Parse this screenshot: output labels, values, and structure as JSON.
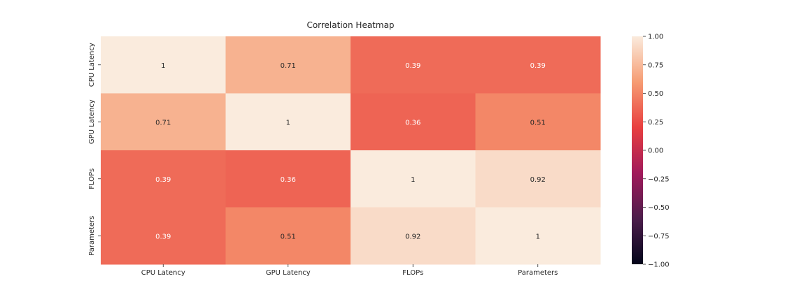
{
  "chart_data": {
    "type": "heatmap",
    "title": "Correlation Heatmap",
    "x_categories": [
      "CPU Latency",
      "GPU Latency",
      "FLOPs",
      "Parameters"
    ],
    "y_categories": [
      "CPU Latency",
      "GPU Latency",
      "FLOPs",
      "Parameters"
    ],
    "values": [
      [
        1,
        0.71,
        0.39,
        0.39
      ],
      [
        0.71,
        1,
        0.36,
        0.51
      ],
      [
        0.39,
        0.36,
        1,
        0.92
      ],
      [
        0.39,
        0.51,
        0.92,
        1
      ]
    ],
    "cell_labels": [
      [
        "1",
        "0.71",
        "0.39",
        "0.39"
      ],
      [
        "0.71",
        "1",
        "0.36",
        "0.51"
      ],
      [
        "0.39",
        "0.36",
        "1",
        "0.92"
      ],
      [
        "0.39",
        "0.51",
        "0.92",
        "1"
      ]
    ],
    "colorbar": {
      "range": [
        -1,
        1
      ],
      "ticks": [
        1,
        0.75,
        0.5,
        0.25,
        0,
        -0.25,
        -0.5,
        -0.75,
        -1
      ],
      "tick_labels": [
        "1.00",
        "0.75",
        "0.50",
        "0.25",
        "0.00",
        "−0.25",
        "−0.50",
        "−0.75",
        "−1.00"
      ],
      "colormap": "rocket",
      "colormap_stops": [
        "#03051a",
        "#4c1d4b",
        "#a11a5b",
        "#e83f3f",
        "#f69c73",
        "#faebdd"
      ]
    },
    "annotation_text_colors": {
      "dark": "#262626",
      "light": "#ffffff"
    }
  }
}
